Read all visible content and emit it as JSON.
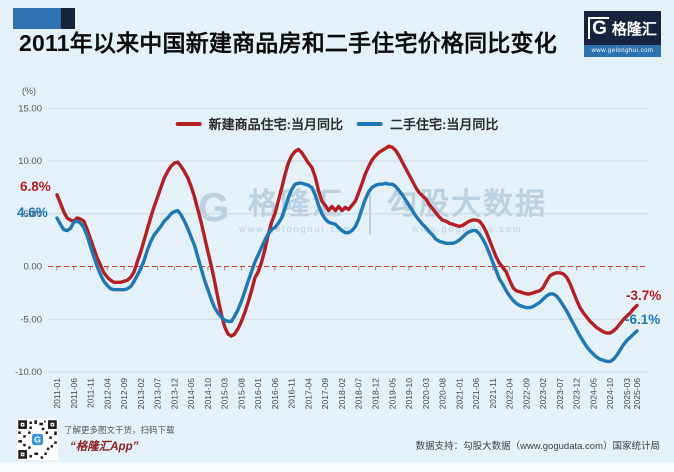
{
  "header": {
    "title": "2011年以来中国新建商品房和二手住宅价格同比变化",
    "logo": {
      "g": "G",
      "name": "格隆汇",
      "url": "www.gelonghui.com"
    }
  },
  "axis": {
    "percent_label": "(%)"
  },
  "watermark": {
    "g": "G",
    "brand": "格隆汇",
    "brand_url": "www.gelonghui.com",
    "partner": "勾股大数据",
    "partner_url": "www.gogudata.com"
  },
  "footer": {
    "qr_caption_line1": "了解更多图文干货，扫码下载",
    "qr_caption_line2": "“格隆汇App”",
    "data_support": "数据支持：勾股大数据（www.gogudata.com）国家统计局"
  },
  "chart_data": {
    "type": "line",
    "title": "2011年以来中国新建商品房和二手住宅价格同比变化",
    "ylabel": "(%)",
    "ylim": [
      -10,
      15
    ],
    "yticks": [
      15,
      10,
      5,
      0,
      -5,
      -10
    ],
    "ytick_labels": [
      "15.00",
      "10.00",
      "5.00",
      "0.00",
      "-5.00",
      "-10.00"
    ],
    "grid": "horizontal",
    "zero_line": {
      "style": "dashed",
      "color": "#cf3a33"
    },
    "legend_position": "top-center",
    "x_start": "2011-01",
    "x_end": "2025-06",
    "x_frequency": "monthly",
    "xticks": [
      {
        "i": 0,
        "label": "2011-01"
      },
      {
        "i": 5,
        "label": "2011-06"
      },
      {
        "i": 10,
        "label": "2011-11"
      },
      {
        "i": 15,
        "label": "2012-04"
      },
      {
        "i": 20,
        "label": "2012-09"
      },
      {
        "i": 25,
        "label": "2013-02"
      },
      {
        "i": 30,
        "label": "2013-07"
      },
      {
        "i": 35,
        "label": "2013-12"
      },
      {
        "i": 40,
        "label": "2014-05"
      },
      {
        "i": 45,
        "label": "2014-10"
      },
      {
        "i": 50,
        "label": "2015-03"
      },
      {
        "i": 55,
        "label": "2015-08"
      },
      {
        "i": 60,
        "label": "2016-01"
      },
      {
        "i": 65,
        "label": "2016-06"
      },
      {
        "i": 70,
        "label": "2016-11"
      },
      {
        "i": 75,
        "label": "2017-04"
      },
      {
        "i": 80,
        "label": "2017-09"
      },
      {
        "i": 85,
        "label": "2018-02"
      },
      {
        "i": 90,
        "label": "2018-07"
      },
      {
        "i": 95,
        "label": "2018-12"
      },
      {
        "i": 100,
        "label": "2019-05"
      },
      {
        "i": 105,
        "label": "2019-10"
      },
      {
        "i": 110,
        "label": "2020-03"
      },
      {
        "i": 115,
        "label": "2020-08"
      },
      {
        "i": 120,
        "label": "2021-01"
      },
      {
        "i": 125,
        "label": "2021-06"
      },
      {
        "i": 130,
        "label": "2021-11"
      },
      {
        "i": 135,
        "label": "2022-04"
      },
      {
        "i": 140,
        "label": "2022-09"
      },
      {
        "i": 145,
        "label": "2023-02"
      },
      {
        "i": 150,
        "label": "2023-07"
      },
      {
        "i": 155,
        "label": "2023-12"
      },
      {
        "i": 160,
        "label": "2024-05"
      },
      {
        "i": 165,
        "label": "2024-10"
      },
      {
        "i": 170,
        "label": "2025-03"
      },
      {
        "i": 173,
        "label": "2025-06"
      }
    ],
    "series": [
      {
        "name": "新建商品住宅:当月同比",
        "color": "#b41f24",
        "values": [
          6.8,
          6.0,
          5.2,
          4.6,
          4.4,
          4.3,
          4.6,
          4.5,
          4.3,
          3.5,
          2.6,
          1.7,
          0.8,
          0.1,
          -0.6,
          -1.0,
          -1.3,
          -1.5,
          -1.5,
          -1.5,
          -1.4,
          -1.3,
          -1.0,
          -0.5,
          0.5,
          1.4,
          2.5,
          3.6,
          4.7,
          5.7,
          6.6,
          7.5,
          8.4,
          9.0,
          9.5,
          9.8,
          9.9,
          9.5,
          9.0,
          8.4,
          7.6,
          6.6,
          5.4,
          4.2,
          2.8,
          1.4,
          0.1,
          -1.4,
          -3.0,
          -4.5,
          -5.7,
          -6.4,
          -6.6,
          -6.4,
          -5.9,
          -5.2,
          -4.4,
          -3.4,
          -2.3,
          -1.1,
          -0.5,
          0.4,
          1.6,
          3.0,
          4.2,
          5.0,
          6.2,
          7.4,
          8.7,
          9.8,
          10.5,
          10.9,
          11.1,
          10.8,
          10.3,
          9.8,
          9.4,
          8.5,
          7.2,
          6.2,
          5.8,
          5.3,
          5.7,
          5.3,
          5.7,
          5.3,
          5.6,
          5.4,
          5.8,
          6.2,
          7.0,
          7.9,
          8.8,
          9.5,
          10.1,
          10.5,
          10.8,
          11.0,
          11.2,
          11.4,
          11.3,
          11.0,
          10.5,
          9.9,
          9.3,
          8.7,
          8.1,
          7.5,
          7.0,
          6.7,
          6.4,
          5.9,
          5.5,
          5.1,
          4.7,
          4.4,
          4.3,
          4.1,
          4.0,
          3.9,
          3.8,
          3.9,
          4.1,
          4.3,
          4.4,
          4.4,
          4.3,
          3.9,
          3.3,
          2.5,
          1.7,
          0.9,
          0.3,
          -0.1,
          -0.5,
          -1.3,
          -2.0,
          -2.3,
          -2.4,
          -2.5,
          -2.6,
          -2.6,
          -2.5,
          -2.4,
          -2.3,
          -2.0,
          -1.4,
          -0.9,
          -0.7,
          -0.6,
          -0.6,
          -0.7,
          -1.0,
          -1.6,
          -2.4,
          -3.2,
          -3.9,
          -4.4,
          -4.8,
          -5.2,
          -5.5,
          -5.8,
          -6.0,
          -6.2,
          -6.3,
          -6.3,
          -6.1,
          -5.8,
          -5.4,
          -5.0,
          -4.7,
          -4.4,
          -4.0,
          -3.7
        ]
      },
      {
        "name": "二手住宅:当月同比",
        "color": "#1e78b5",
        "values": [
          4.6,
          4.0,
          3.5,
          3.4,
          3.6,
          4.2,
          4.3,
          4.1,
          3.7,
          2.9,
          1.9,
          0.9,
          0.0,
          -0.8,
          -1.4,
          -1.8,
          -2.1,
          -2.2,
          -2.2,
          -2.2,
          -2.2,
          -2.1,
          -1.9,
          -1.4,
          -0.8,
          -0.2,
          0.6,
          1.6,
          2.4,
          3.0,
          3.4,
          3.8,
          4.3,
          4.6,
          5.0,
          5.2,
          5.3,
          4.9,
          4.3,
          3.6,
          2.8,
          2.0,
          0.9,
          -0.2,
          -1.3,
          -2.2,
          -3.1,
          -3.9,
          -4.4,
          -4.8,
          -5.1,
          -5.2,
          -5.2,
          -4.7,
          -4.1,
          -3.3,
          -2.4,
          -1.4,
          -0.5,
          0.4,
          1.1,
          1.8,
          2.5,
          3.1,
          3.5,
          3.7,
          4.1,
          4.6,
          5.5,
          6.5,
          7.3,
          7.8,
          7.9,
          7.9,
          7.8,
          7.7,
          7.5,
          6.8,
          5.8,
          5.0,
          4.5,
          4.2,
          4.1,
          4.0,
          3.7,
          3.4,
          3.2,
          3.2,
          3.4,
          3.8,
          4.5,
          5.5,
          6.4,
          7.1,
          7.5,
          7.7,
          7.8,
          7.8,
          7.9,
          7.8,
          7.8,
          7.6,
          7.2,
          6.8,
          6.3,
          5.8,
          5.3,
          4.8,
          4.4,
          4.0,
          3.7,
          3.3,
          3.0,
          2.6,
          2.4,
          2.3,
          2.2,
          2.2,
          2.2,
          2.3,
          2.5,
          2.8,
          3.1,
          3.3,
          3.4,
          3.4,
          3.1,
          2.6,
          2.0,
          1.2,
          0.4,
          -0.4,
          -1.2,
          -1.7,
          -2.3,
          -2.8,
          -3.2,
          -3.5,
          -3.7,
          -3.8,
          -3.9,
          -3.9,
          -3.8,
          -3.6,
          -3.4,
          -3.1,
          -2.8,
          -2.6,
          -2.6,
          -2.8,
          -3.2,
          -3.7,
          -4.2,
          -4.8,
          -5.4,
          -6.0,
          -6.6,
          -7.1,
          -7.6,
          -8.0,
          -8.3,
          -8.6,
          -8.8,
          -8.9,
          -9.0,
          -9.0,
          -8.8,
          -8.4,
          -7.9,
          -7.4,
          -7.0,
          -6.7,
          -6.4,
          -6.1
        ]
      }
    ],
    "annotations": [
      {
        "text": "6.8%",
        "color": "#b41f24",
        "anchor": "start of new-home series (2011-01)"
      },
      {
        "text": "4.6%",
        "color": "#1e78b5",
        "anchor": "start of second-hand series (2011-01)"
      },
      {
        "text": "-3.7%",
        "color": "#b41f24",
        "anchor": "end of new-home series (2025-06)"
      },
      {
        "text": "-6.1%",
        "color": "#1e78b5",
        "anchor": "end of second-hand series (2025-06)"
      }
    ]
  }
}
